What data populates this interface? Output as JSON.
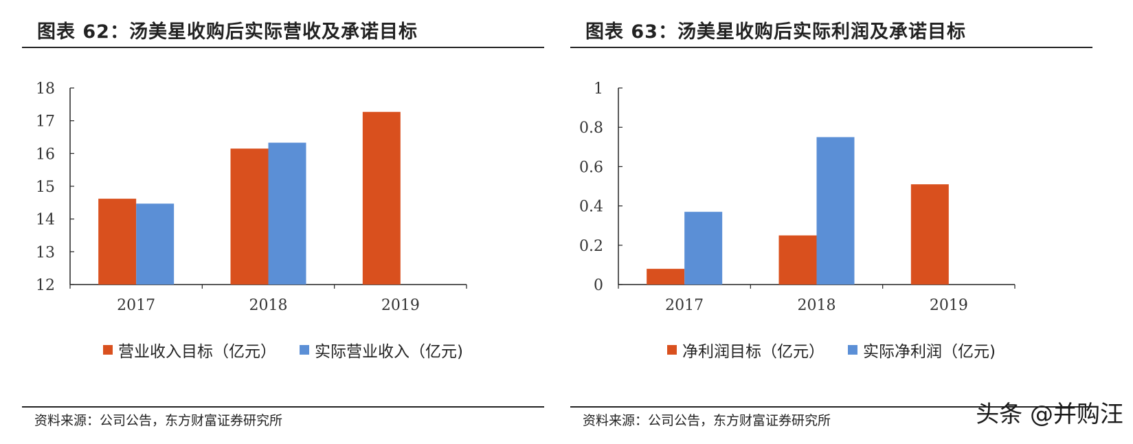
{
  "colors": {
    "series1": "#d9501e",
    "series2": "#5b8fd6"
  },
  "watermark": "头条 @并购汪",
  "chart_data": [
    {
      "type": "bar",
      "title": "图表 62：汤美星收购后实际营收及承诺目标",
      "categories": [
        "2017",
        "2018",
        "2019"
      ],
      "series": [
        {
          "name": "营业收入目标（亿元）",
          "values": [
            14.62,
            16.15,
            17.27
          ]
        },
        {
          "name": "实际营业收入（亿元)",
          "values": [
            14.47,
            16.33,
            null
          ]
        }
      ],
      "ylim": [
        12,
        18
      ],
      "yticks": [
        "12",
        "13",
        "14",
        "15",
        "16",
        "17",
        "18"
      ],
      "ytick_values": [
        12,
        13,
        14,
        15,
        16,
        17,
        18
      ],
      "source": "资料来源：公司公告，东方财富证券研究所"
    },
    {
      "type": "bar",
      "title": "图表 63：汤美星收购后实际利润及承诺目标",
      "categories": [
        "2017",
        "2018",
        "2019"
      ],
      "series": [
        {
          "name": "净利润目标（亿元）",
          "values": [
            0.08,
            0.25,
            0.51
          ]
        },
        {
          "name": "实际净利润（亿元)",
          "values": [
            0.37,
            0.75,
            null
          ]
        }
      ],
      "ylim": [
        0,
        1
      ],
      "yticks": [
        "0",
        "0.2",
        "0.4",
        "0.6",
        "0.8",
        "1"
      ],
      "ytick_values": [
        0,
        0.2,
        0.4,
        0.6,
        0.8,
        1
      ],
      "source": "资料来源：公司公告，东方财富证券研究所"
    }
  ]
}
